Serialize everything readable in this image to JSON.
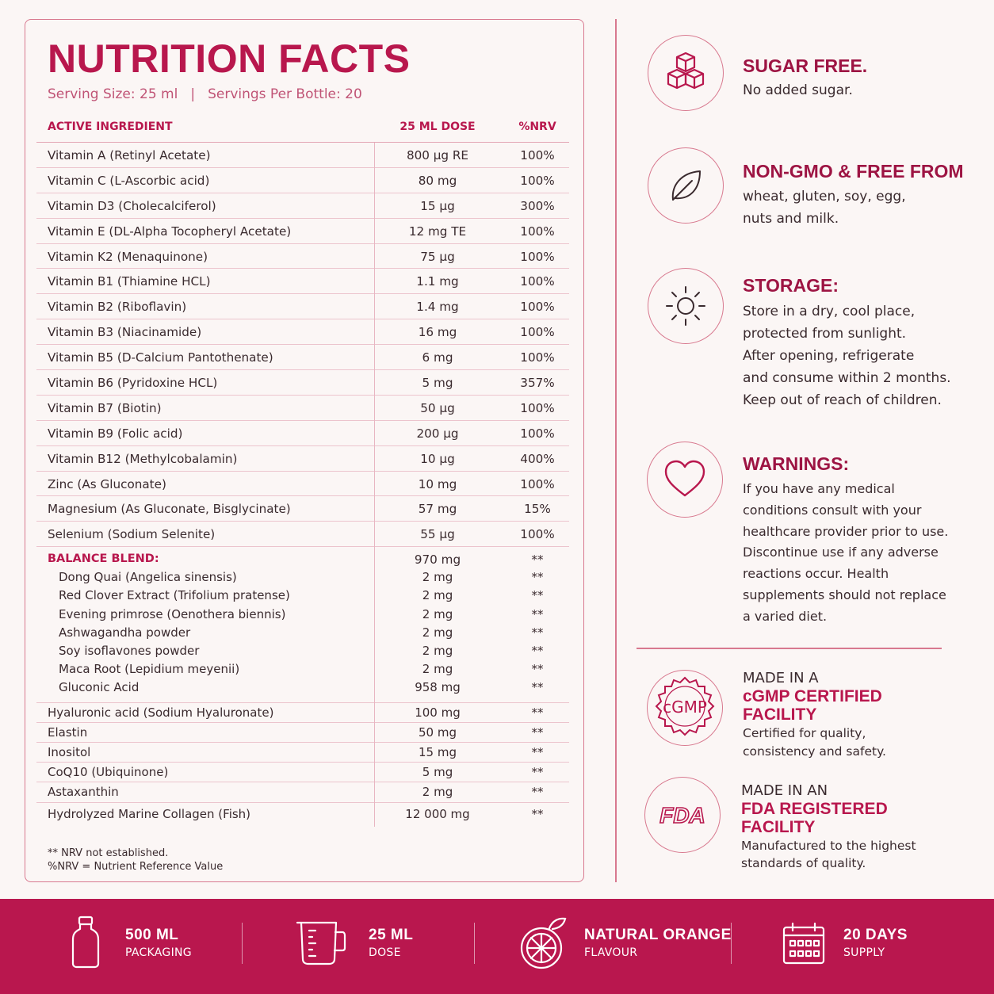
{
  "nutrition": {
    "title": "NUTRITION FACTS",
    "serving_size": "Serving Size: 25 ml",
    "separator": "|",
    "servings_per_bottle": "Servings Per Bottle: 20",
    "headers": {
      "ingredient": "ACTIVE INGREDIENT",
      "dose": "25 ML DOSE",
      "nrv": "%NRV"
    },
    "rows": [
      {
        "name": "Vitamin A (Retinyl Acetate)",
        "dose": "800 µg RE",
        "nrv": "100%"
      },
      {
        "name": "Vitamin C (L-Ascorbic acid)",
        "dose": "80 mg",
        "nrv": "100%"
      },
      {
        "name": "Vitamin D3 (Cholecalciferol)",
        "dose": "15 µg",
        "nrv": "300%"
      },
      {
        "name": "Vitamin E (DL-Alpha Tocopheryl Acetate)",
        "dose": "12 mg TE",
        "nrv": "100%"
      },
      {
        "name": "Vitamin K2 (Menaquinone)",
        "dose": "75 µg",
        "nrv": "100%"
      },
      {
        "name": "Vitamin B1 (Thiamine HCL)",
        "dose": "1.1 mg",
        "nrv": "100%"
      },
      {
        "name": "Vitamin B2 (Riboflavin)",
        "dose": "1.4 mg",
        "nrv": "100%"
      },
      {
        "name": "Vitamin B3 (Niacinamide)",
        "dose": "16 mg",
        "nrv": "100%"
      },
      {
        "name": "Vitamin B5 (D-Calcium Pantothenate)",
        "dose": "6 mg",
        "nrv": "100%"
      },
      {
        "name": "Vitamin B6 (Pyridoxine HCL)",
        "dose": "5 mg",
        "nrv": "357%"
      },
      {
        "name": "Vitamin B7 (Biotin)",
        "dose": "50 µg",
        "nrv": "100%"
      },
      {
        "name": "Vitamin B9 (Folic acid)",
        "dose": "200 µg",
        "nrv": "100%"
      },
      {
        "name": "Vitamin B12 (Methylcobalamin)",
        "dose": "10 µg",
        "nrv": "400%"
      },
      {
        "name": "Zinc (As Gluconate)",
        "dose": "10 mg",
        "nrv": "100%"
      },
      {
        "name": "Magnesium (As Gluconate, Bisglycinate)",
        "dose": "57 mg",
        "nrv": "15%"
      },
      {
        "name": "Selenium (Sodium Selenite)",
        "dose": "55 µg",
        "nrv": "100%"
      }
    ],
    "blend": {
      "name": "BALANCE BLEND:",
      "dose": "970 mg",
      "nrv": "**",
      "items": [
        {
          "name": "Dong Quai (Angelica sinensis)",
          "dose": "2 mg",
          "nrv": "**"
        },
        {
          "name": "Red Clover Extract (Trifolium pratense)",
          "dose": "2 mg",
          "nrv": "**"
        },
        {
          "name": "Evening primrose (Oenothera biennis)",
          "dose": "2 mg",
          "nrv": "**"
        },
        {
          "name": "Ashwagandha powder",
          "dose": "2 mg",
          "nrv": "**"
        },
        {
          "name": "Soy isoflavones powder",
          "dose": "2 mg",
          "nrv": "**"
        },
        {
          "name": "Maca Root (Lepidium meyenii)",
          "dose": "2 mg",
          "nrv": "**"
        },
        {
          "name": "Gluconic Acid",
          "dose": "958 mg",
          "nrv": "**"
        }
      ]
    },
    "extras": [
      {
        "name": "Hyaluronic acid (Sodium Hyaluronate)",
        "dose": "100 mg",
        "nrv": "**"
      },
      {
        "name": "Elastin",
        "dose": "50 mg",
        "nrv": "**"
      },
      {
        "name": "Inositol",
        "dose": "15 mg",
        "nrv": "**"
      },
      {
        "name": "CoQ10 (Ubiquinone)",
        "dose": "5 mg",
        "nrv": "**"
      },
      {
        "name": "Astaxanthin",
        "dose": "2 mg",
        "nrv": "**"
      },
      {
        "name": "Hydrolyzed Marine Collagen (Fish)",
        "dose": "12 000 mg",
        "nrv": "**"
      }
    ],
    "footnote_1": "** NRV not established.",
    "footnote_2": "%NRV = Nutrient Reference Value"
  },
  "features": {
    "sugar": {
      "icon": "sugar-cubes-icon",
      "title": "SUGAR FREE.",
      "line1": "No added sugar."
    },
    "gmo": {
      "icon": "leaf-icon",
      "title": "NON-GMO & FREE FROM",
      "line1": "wheat, gluten, soy, egg,",
      "line2": "nuts and milk."
    },
    "storage": {
      "icon": "sun-icon",
      "title": "STORAGE:",
      "line1": "Store in a dry, cool place,",
      "line2": "protected from sunlight.",
      "line3": "After opening, refrigerate",
      "line4": "and consume within 2 months.",
      "line5": "Keep out of reach of children."
    },
    "warnings": {
      "icon": "heart-icon",
      "title": "WARNINGS:",
      "line1": "If you have any medical",
      "line2": "conditions consult with your",
      "line3": "healthcare provider prior to use.",
      "line4": "Discontinue use if any adverse",
      "line5": "reactions occur. Health",
      "line6": "supplements should not replace",
      "line7": "a varied diet."
    }
  },
  "certs": {
    "gmp": {
      "badge": "cGMP",
      "pre": "MADE IN A",
      "title1": "cGMP CERTIFIED",
      "title2": "FACILITY",
      "line1": "Certified for quality,",
      "line2": "consistency and safety."
    },
    "fda": {
      "badge": "FDA",
      "pre": "MADE IN AN",
      "title1": "FDA REGISTERED",
      "title2": "FACILITY",
      "line1": "Manufactured to the highest",
      "line2": "standards of quality."
    }
  },
  "bottom_bar": {
    "background": "#b9174e",
    "items": [
      {
        "icon": "bottle-icon",
        "title": "500 ML",
        "sub": "PACKAGING"
      },
      {
        "icon": "measuring-cup-icon",
        "title": "25 ML",
        "sub": "DOSE"
      },
      {
        "icon": "orange-icon",
        "title": "NATURAL ORANGE",
        "sub": "FLAVOUR"
      },
      {
        "icon": "calendar-icon",
        "title": "20 DAYS",
        "sub": "SUPPLY"
      }
    ]
  },
  "colors": {
    "accent": "#b8174d",
    "border": "#d8798f",
    "background": "#fbf6f5"
  }
}
